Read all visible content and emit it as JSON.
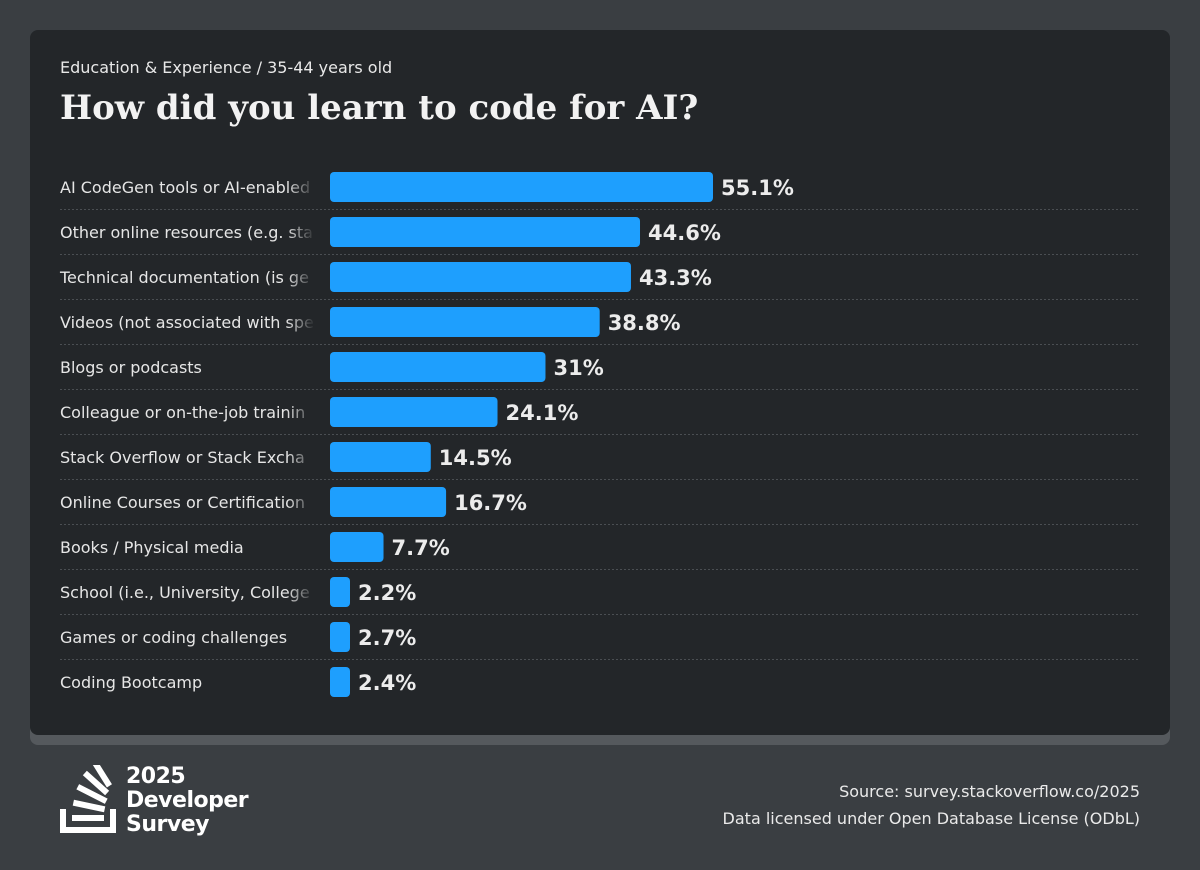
{
  "header": {
    "breadcrumb": "Education & Experience / 35-44 years old",
    "title": "How did you learn to code for AI?"
  },
  "chart_data": {
    "type": "bar",
    "orientation": "horizontal",
    "categories": [
      "AI CodeGen tools or AI-enabled",
      "Other online resources (e.g. sta",
      "Technical documentation (is ge",
      "Videos (not associated with spe",
      "Blogs or podcasts",
      "Colleague or on-the-job trainin",
      "Stack Overflow or Stack Excha",
      "Online Courses or Certification",
      "Books / Physical media",
      "School (i.e., University, College",
      "Games or coding challenges",
      "Coding Bootcamp"
    ],
    "values": [
      55.1,
      44.6,
      43.3,
      38.8,
      31,
      24.1,
      14.5,
      16.7,
      7.7,
      2.2,
      2.7,
      2.4
    ],
    "value_labels": [
      "55.1%",
      "44.6%",
      "43.3%",
      "38.8%",
      "31%",
      "24.1%",
      "14.5%",
      "16.7%",
      "7.7%",
      "2.2%",
      "2.7%",
      "2.4%"
    ],
    "bar_color": "#1e9ffe",
    "grid": false
  },
  "footer": {
    "logo_year": "2025",
    "logo_line2": "Developer",
    "logo_line3": "Survey",
    "source": "Source: survey.stackoverflow.co/2025",
    "license": "Data licensed under Open Database License (ODbL)"
  }
}
